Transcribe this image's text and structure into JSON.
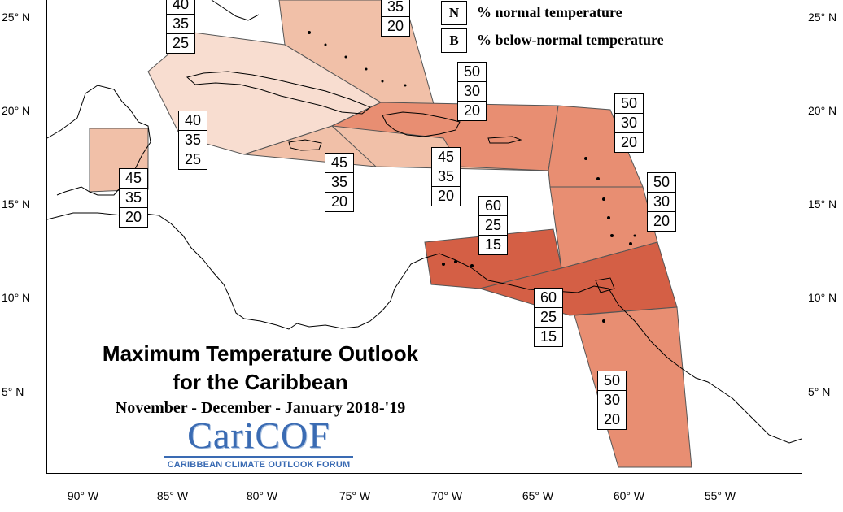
{
  "title_line1": "Maximum Temperature Outlook",
  "title_line2": "for the Caribbean",
  "subtitle": "November - December - January 2018-'19",
  "logo": {
    "wordmark": "CariCOF",
    "tagline": "CARIBBEAN CLIMATE OUTLOOK FORUM"
  },
  "legend": [
    {
      "key": "N",
      "label": "% normal temperature"
    },
    {
      "key": "B",
      "label": "% below-normal temperature"
    }
  ],
  "lat_labels": [
    "25° N",
    "20° N",
    "15° N",
    "10° N",
    "5° N"
  ],
  "lon_labels": [
    "90° W",
    "85° W",
    "80° W",
    "75° W",
    "70° W",
    "65° W",
    "60° W",
    "55° W"
  ],
  "colors": {
    "light": "#f8ddd0",
    "medium": "#f1c0a8",
    "strong": "#e88e72",
    "strongest": "#d45f45"
  },
  "regions": [
    {
      "name": "bahamas",
      "probabilities": [
        "35",
        "20"
      ],
      "shade": "medium"
    },
    {
      "name": "cuba",
      "probabilities": [
        "40",
        "35",
        "25"
      ],
      "shade": "light"
    },
    {
      "name": "cayman",
      "probabilities": [
        "40",
        "35",
        "25"
      ],
      "shade": "light"
    },
    {
      "name": "belize",
      "probabilities": [
        "45",
        "35",
        "20"
      ],
      "shade": "medium"
    },
    {
      "name": "jamaica",
      "probabilities": [
        "45",
        "35",
        "20"
      ],
      "shade": "medium"
    },
    {
      "name": "hispaniola-puerto-rico",
      "probabilities": [
        "45",
        "35",
        "20"
      ],
      "shade": "medium"
    },
    {
      "name": "hispaniola-east",
      "probabilities": [
        "50",
        "30",
        "20"
      ],
      "shade": "strong"
    },
    {
      "name": "leeward-islands",
      "probabilities": [
        "50",
        "30",
        "20"
      ],
      "shade": "strong"
    },
    {
      "name": "windward-islands",
      "probabilities": [
        "50",
        "30",
        "20"
      ],
      "shade": "strong"
    },
    {
      "name": "abc-islands",
      "probabilities": [
        "60",
        "25",
        "15"
      ],
      "shade": "strongest"
    },
    {
      "name": "trinidad-tobago",
      "probabilities": [
        "60",
        "25",
        "15"
      ],
      "shade": "strongest"
    },
    {
      "name": "guianas",
      "probabilities": [
        "50",
        "30",
        "20"
      ],
      "shade": "strong"
    }
  ]
}
